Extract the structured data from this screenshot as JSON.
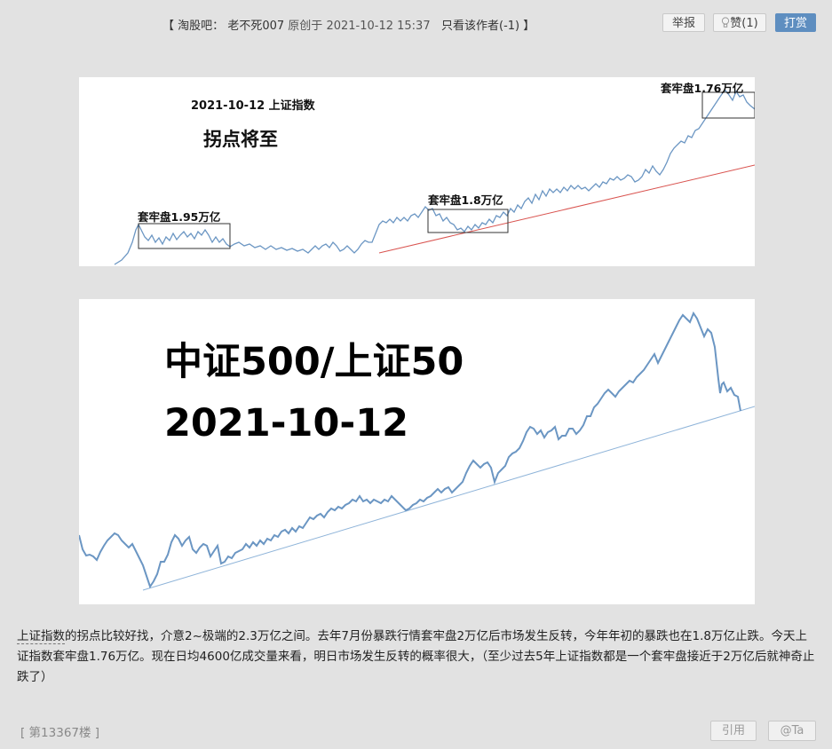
{
  "header": {
    "bracket_open": "【",
    "forum_name": "淘股吧：",
    "author": "老不死007",
    "posted_label": "原创于",
    "timestamp": "2021-10-12 15:37",
    "author_only": "只看该作者(-1)",
    "bracket_close": "】",
    "report_label": "举报",
    "like_label": "赞(1)",
    "reward_label": "打赏"
  },
  "image1": {
    "title": "2021-10-12 上证指数",
    "subtitle": "拐点将至",
    "box1_label": "套牢盘1.95万亿",
    "box2_label": "套牢盘1.8万亿",
    "box3_label": "套牢盘1.76万亿",
    "line_color": "#6b96c3",
    "trend_color": "#d9534f"
  },
  "image2": {
    "title": "中证500/上证50",
    "date": "2021-10-12",
    "line_color": "#6b96c3",
    "trend_color": "#8fb4d9"
  },
  "post": {
    "highlight": "上证指数",
    "body": "的拐点比较好找，介意2~极端的2.3万亿之间。去年7月份暴跌行情套牢盘2万亿后市场发生反转，今年年初的暴跌也在1.8万亿止跌。今天上证指数套牢盘1.76万亿。现在日均4600亿成交量来看，明日市场发生反转的概率很大，（至少过去5年上证指数都是一个套牢盘接近于2万亿后就神奇止跌了）"
  },
  "footer": {
    "floor": "[ 第13367楼 ]",
    "quote_label": "引用",
    "at_label": "@Ta"
  }
}
